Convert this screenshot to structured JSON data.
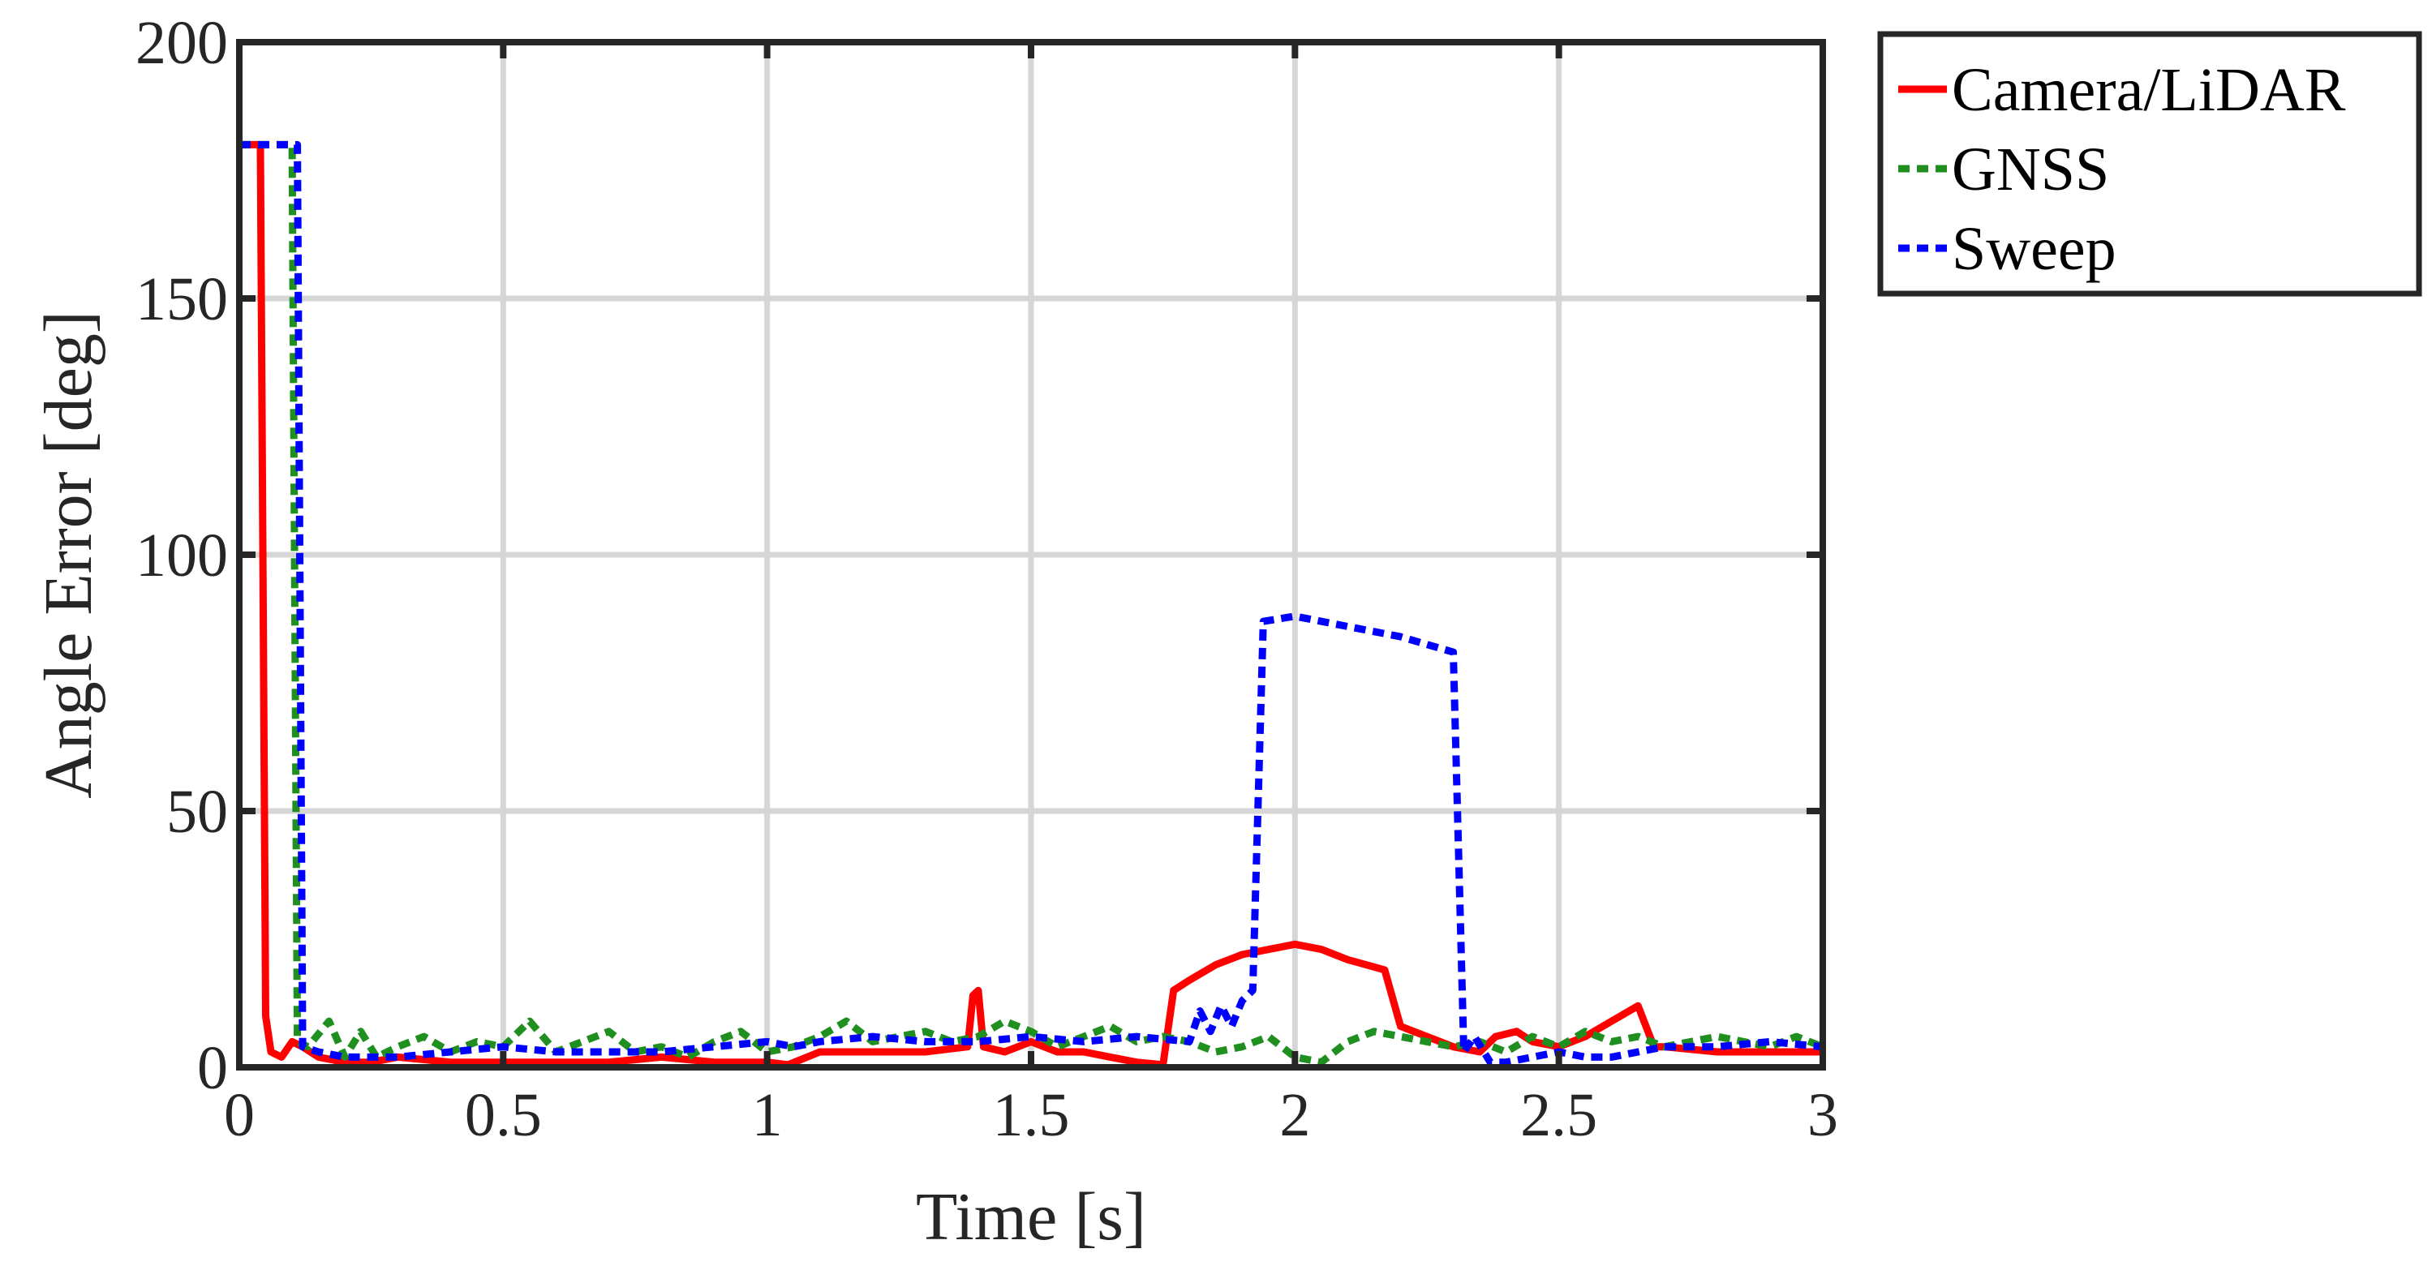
{
  "chart_data": {
    "type": "line",
    "xlabel": "Time [s]",
    "ylabel": "Angle Error [deg]",
    "xlim": [
      0,
      3
    ],
    "ylim": [
      0,
      200
    ],
    "xticks": [
      0,
      0.5,
      1,
      1.5,
      2,
      2.5,
      3
    ],
    "xtick_labels": [
      "0",
      "0.5",
      "1",
      "1.5",
      "2",
      "2.5",
      "3"
    ],
    "yticks": [
      0,
      50,
      100,
      150,
      200
    ],
    "ytick_labels": [
      "0",
      "50",
      "100",
      "150",
      "200"
    ],
    "grid": true,
    "legend_position": "outside-top-right",
    "series": [
      {
        "name": "Camera/LiDAR",
        "color": "#ff0000",
        "style": "solid",
        "x": [
          0,
          0.04,
          0.05,
          0.06,
          0.08,
          0.1,
          0.12,
          0.15,
          0.2,
          0.25,
          0.3,
          0.4,
          0.5,
          0.6,
          0.7,
          0.8,
          0.9,
          1.0,
          1.04,
          1.1,
          1.2,
          1.3,
          1.38,
          1.39,
          1.4,
          1.41,
          1.45,
          1.5,
          1.55,
          1.6,
          1.65,
          1.7,
          1.75,
          1.77,
          1.8,
          1.85,
          1.9,
          2.0,
          2.05,
          2.1,
          2.17,
          2.2,
          2.25,
          2.3,
          2.35,
          2.38,
          2.42,
          2.45,
          2.5,
          2.55,
          2.6,
          2.65,
          2.68,
          2.7,
          2.8,
          2.9,
          3.0
        ],
        "y": [
          180,
          180,
          10,
          3,
          2,
          5,
          4,
          2,
          1,
          1,
          2,
          1,
          1,
          1,
          1,
          2,
          1,
          1,
          0.5,
          3,
          3,
          3,
          4,
          14,
          15,
          4,
          3,
          5,
          3,
          3,
          2,
          1,
          0.5,
          15,
          17,
          20,
          22,
          24,
          23,
          21,
          19,
          8,
          6,
          4,
          3,
          6,
          7,
          5,
          4,
          6,
          9,
          12,
          4,
          4,
          3,
          3,
          3
        ]
      },
      {
        "name": "GNSS",
        "color": "#1f8f1f",
        "style": "dotted",
        "x": [
          0,
          0.1,
          0.11,
          0.13,
          0.17,
          0.2,
          0.23,
          0.26,
          0.3,
          0.35,
          0.4,
          0.45,
          0.5,
          0.55,
          0.6,
          0.65,
          0.7,
          0.75,
          0.8,
          0.85,
          0.9,
          0.95,
          1.0,
          1.05,
          1.1,
          1.15,
          1.2,
          1.25,
          1.3,
          1.35,
          1.4,
          1.45,
          1.5,
          1.55,
          1.6,
          1.65,
          1.7,
          1.75,
          1.8,
          1.85,
          1.9,
          1.95,
          2.0,
          2.05,
          2.1,
          2.15,
          2.2,
          2.25,
          2.3,
          2.35,
          2.4,
          2.45,
          2.5,
          2.55,
          2.6,
          2.65,
          2.7,
          2.75,
          2.8,
          2.85,
          2.9,
          2.95,
          3.0
        ],
        "y": [
          180,
          180,
          5,
          4,
          9,
          2,
          7,
          2,
          4,
          6,
          3,
          5,
          4,
          9,
          3,
          5,
          7,
          3,
          4,
          2,
          5,
          7,
          3,
          4,
          6,
          9,
          5,
          6,
          7,
          5,
          6,
          9,
          7,
          4,
          6,
          8,
          5,
          6,
          5,
          3,
          4,
          6,
          2,
          1,
          5,
          7,
          6,
          5,
          4,
          5,
          3,
          6,
          4,
          7,
          5,
          6,
          4,
          5,
          6,
          5,
          4,
          6,
          4
        ]
      },
      {
        "name": "Sweep",
        "color": "#0000ff",
        "style": "dotted",
        "x": [
          0,
          0.11,
          0.12,
          0.15,
          0.2,
          0.3,
          0.4,
          0.5,
          0.6,
          0.7,
          0.8,
          0.9,
          1.0,
          1.05,
          1.1,
          1.2,
          1.3,
          1.4,
          1.5,
          1.6,
          1.7,
          1.8,
          1.82,
          1.84,
          1.86,
          1.88,
          1.9,
          1.92,
          1.94,
          2.0,
          2.1,
          2.2,
          2.3,
          2.32,
          2.34,
          2.37,
          2.4,
          2.45,
          2.5,
          2.55,
          2.6,
          2.7,
          2.8,
          2.9,
          3.0
        ],
        "y": [
          180,
          180,
          4,
          3,
          2,
          2,
          3,
          4,
          3,
          3,
          3,
          4,
          5,
          4,
          5,
          6,
          5,
          5,
          6,
          5,
          6,
          5,
          11,
          7,
          12,
          8,
          13,
          15,
          87,
          88,
          86,
          84,
          81,
          3,
          6,
          1,
          1,
          2,
          3,
          2,
          2,
          4,
          4,
          5,
          4
        ]
      }
    ]
  }
}
